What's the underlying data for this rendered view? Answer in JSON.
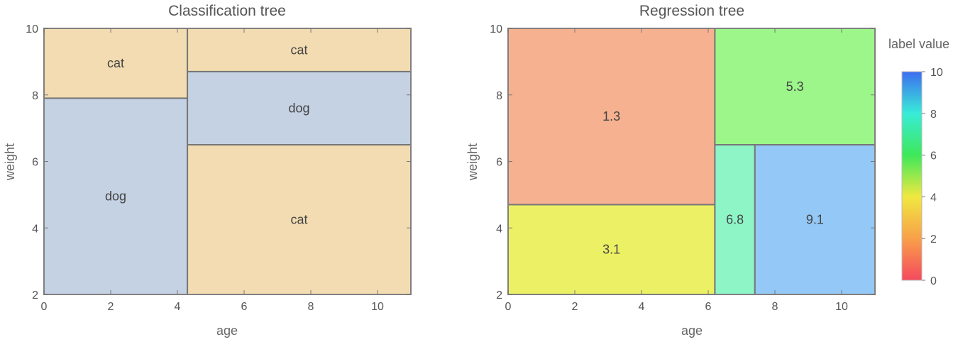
{
  "chart_data": [
    {
      "type": "heatmap",
      "title": "Classification tree",
      "xlabel": "age",
      "ylabel": "weight",
      "xlim": [
        0,
        11
      ],
      "ylim": [
        2,
        10
      ],
      "xticks": [
        "0",
        "2",
        "4",
        "6",
        "8",
        "10"
      ],
      "yticks": [
        "2",
        "4",
        "6",
        "8",
        "10"
      ],
      "grid": false,
      "regions": [
        {
          "x": [
            0,
            4.3
          ],
          "y": [
            7.9,
            10
          ],
          "label": "cat",
          "color": "#f3dcb1"
        },
        {
          "x": [
            0,
            4.3
          ],
          "y": [
            2,
            7.9
          ],
          "label": "dog",
          "color": "#c5d2e3"
        },
        {
          "x": [
            4.3,
            11
          ],
          "y": [
            8.7,
            10
          ],
          "label": "cat",
          "color": "#f3dcb1"
        },
        {
          "x": [
            4.3,
            11
          ],
          "y": [
            6.5,
            8.7
          ],
          "label": "dog",
          "color": "#c5d2e3"
        },
        {
          "x": [
            4.3,
            11
          ],
          "y": [
            2,
            6.5
          ],
          "label": "cat",
          "color": "#f3dcb1"
        }
      ]
    },
    {
      "type": "heatmap",
      "title": "Regression tree",
      "xlabel": "age",
      "ylabel": "weight",
      "xlim": [
        0,
        11
      ],
      "ylim": [
        2,
        10
      ],
      "xticks": [
        "0",
        "2",
        "4",
        "6",
        "8",
        "10"
      ],
      "yticks": [
        "2",
        "4",
        "6",
        "8",
        "10"
      ],
      "grid": false,
      "regions": [
        {
          "x": [
            0,
            6.2
          ],
          "y": [
            4.7,
            10
          ],
          "label": "1.3",
          "value": 1.3,
          "color": "#f6b190"
        },
        {
          "x": [
            0,
            6.2
          ],
          "y": [
            2,
            4.7
          ],
          "label": "3.1",
          "value": 3.1,
          "color": "#ecf064"
        },
        {
          "x": [
            6.2,
            11
          ],
          "y": [
            6.5,
            10
          ],
          "label": "5.3",
          "value": 5.3,
          "color": "#9cf68a"
        },
        {
          "x": [
            6.2,
            7.4
          ],
          "y": [
            2,
            6.5
          ],
          "label": "6.8",
          "value": 6.8,
          "color": "#8ef5c7"
        },
        {
          "x": [
            7.4,
            11
          ],
          "y": [
            2,
            6.5
          ],
          "label": "9.1",
          "value": 9.1,
          "color": "#94c8f6"
        }
      ],
      "legend": {
        "title": "label value",
        "placement": "right",
        "range": [
          0,
          10
        ],
        "ticks": [
          "0",
          "2",
          "4",
          "6",
          "8",
          "10"
        ],
        "colors": [
          "#f5495e",
          "#f8a04a",
          "#f0e840",
          "#3ee85a",
          "#38ecd8",
          "#3d6df0"
        ]
      }
    }
  ]
}
